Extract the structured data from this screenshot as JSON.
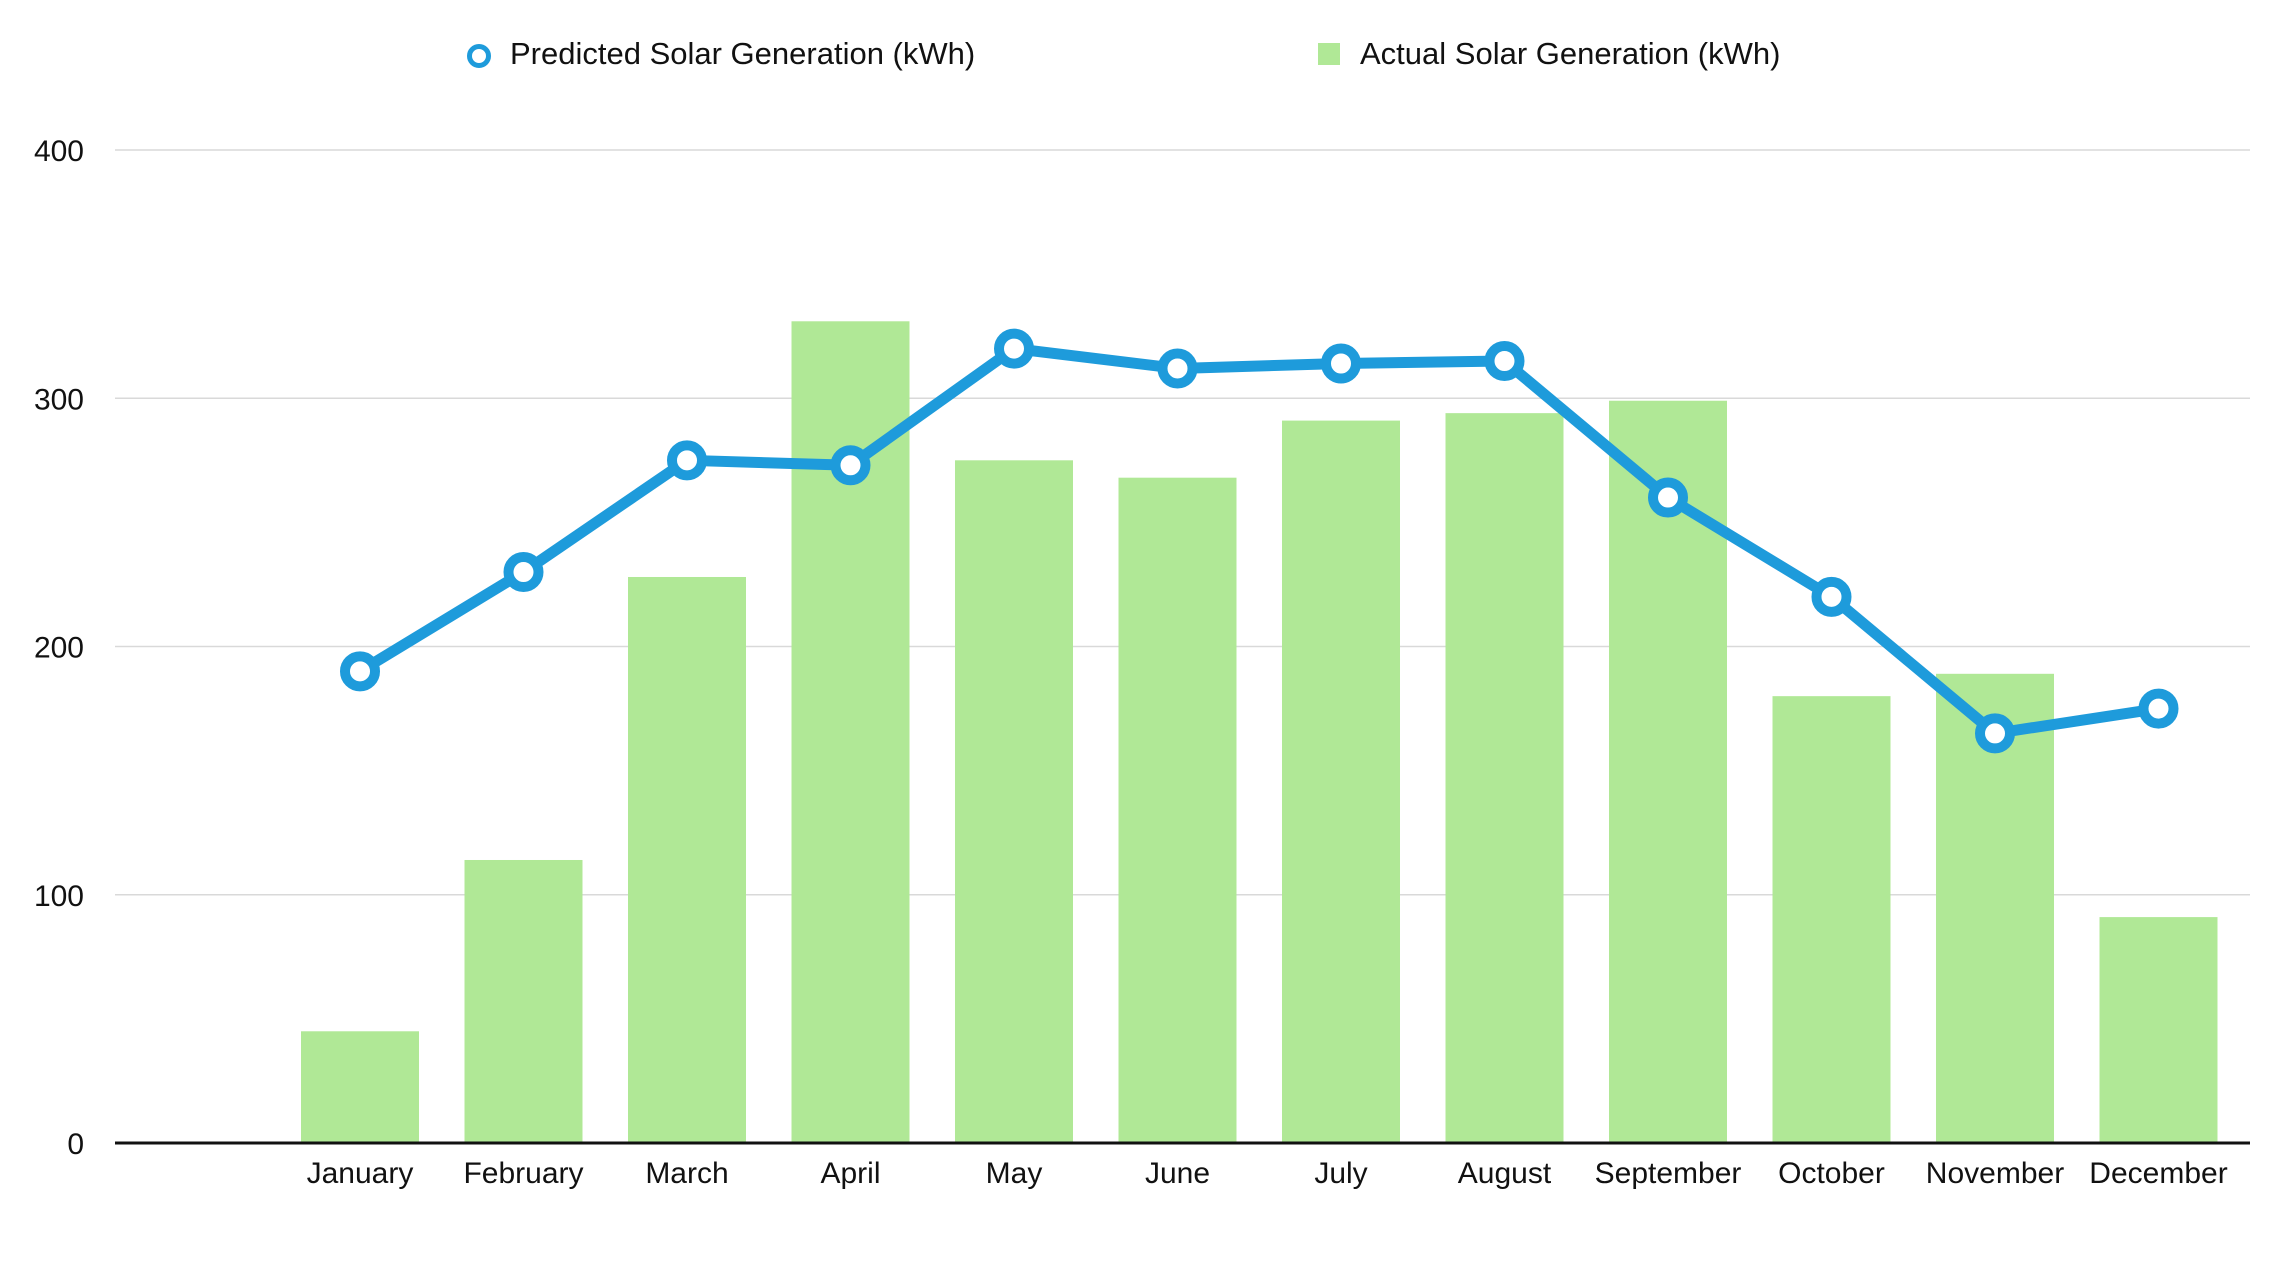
{
  "chart_data": {
    "type": "bar",
    "categories": [
      "January",
      "February",
      "March",
      "April",
      "May",
      "June",
      "July",
      "August",
      "September",
      "October",
      "November",
      "December"
    ],
    "series": [
      {
        "name": "Predicted Solar Generation (kWh)",
        "type": "line",
        "color": "#1e9bdb",
        "values": [
          190,
          230,
          275,
          273,
          320,
          312,
          314,
          315,
          260,
          220,
          165,
          175
        ]
      },
      {
        "name": "Actual Solar Generation (kWh)",
        "type": "bar",
        "color": "#b0e896",
        "values": [
          45,
          114,
          228,
          331,
          275,
          268,
          291,
          294,
          299,
          180,
          189,
          91
        ]
      }
    ],
    "yticks": [
      0,
      100,
      200,
      300,
      400
    ],
    "ylim": [
      0,
      400
    ],
    "title": "",
    "xlabel": "",
    "ylabel": "",
    "grid": true,
    "legend": "top-center"
  }
}
